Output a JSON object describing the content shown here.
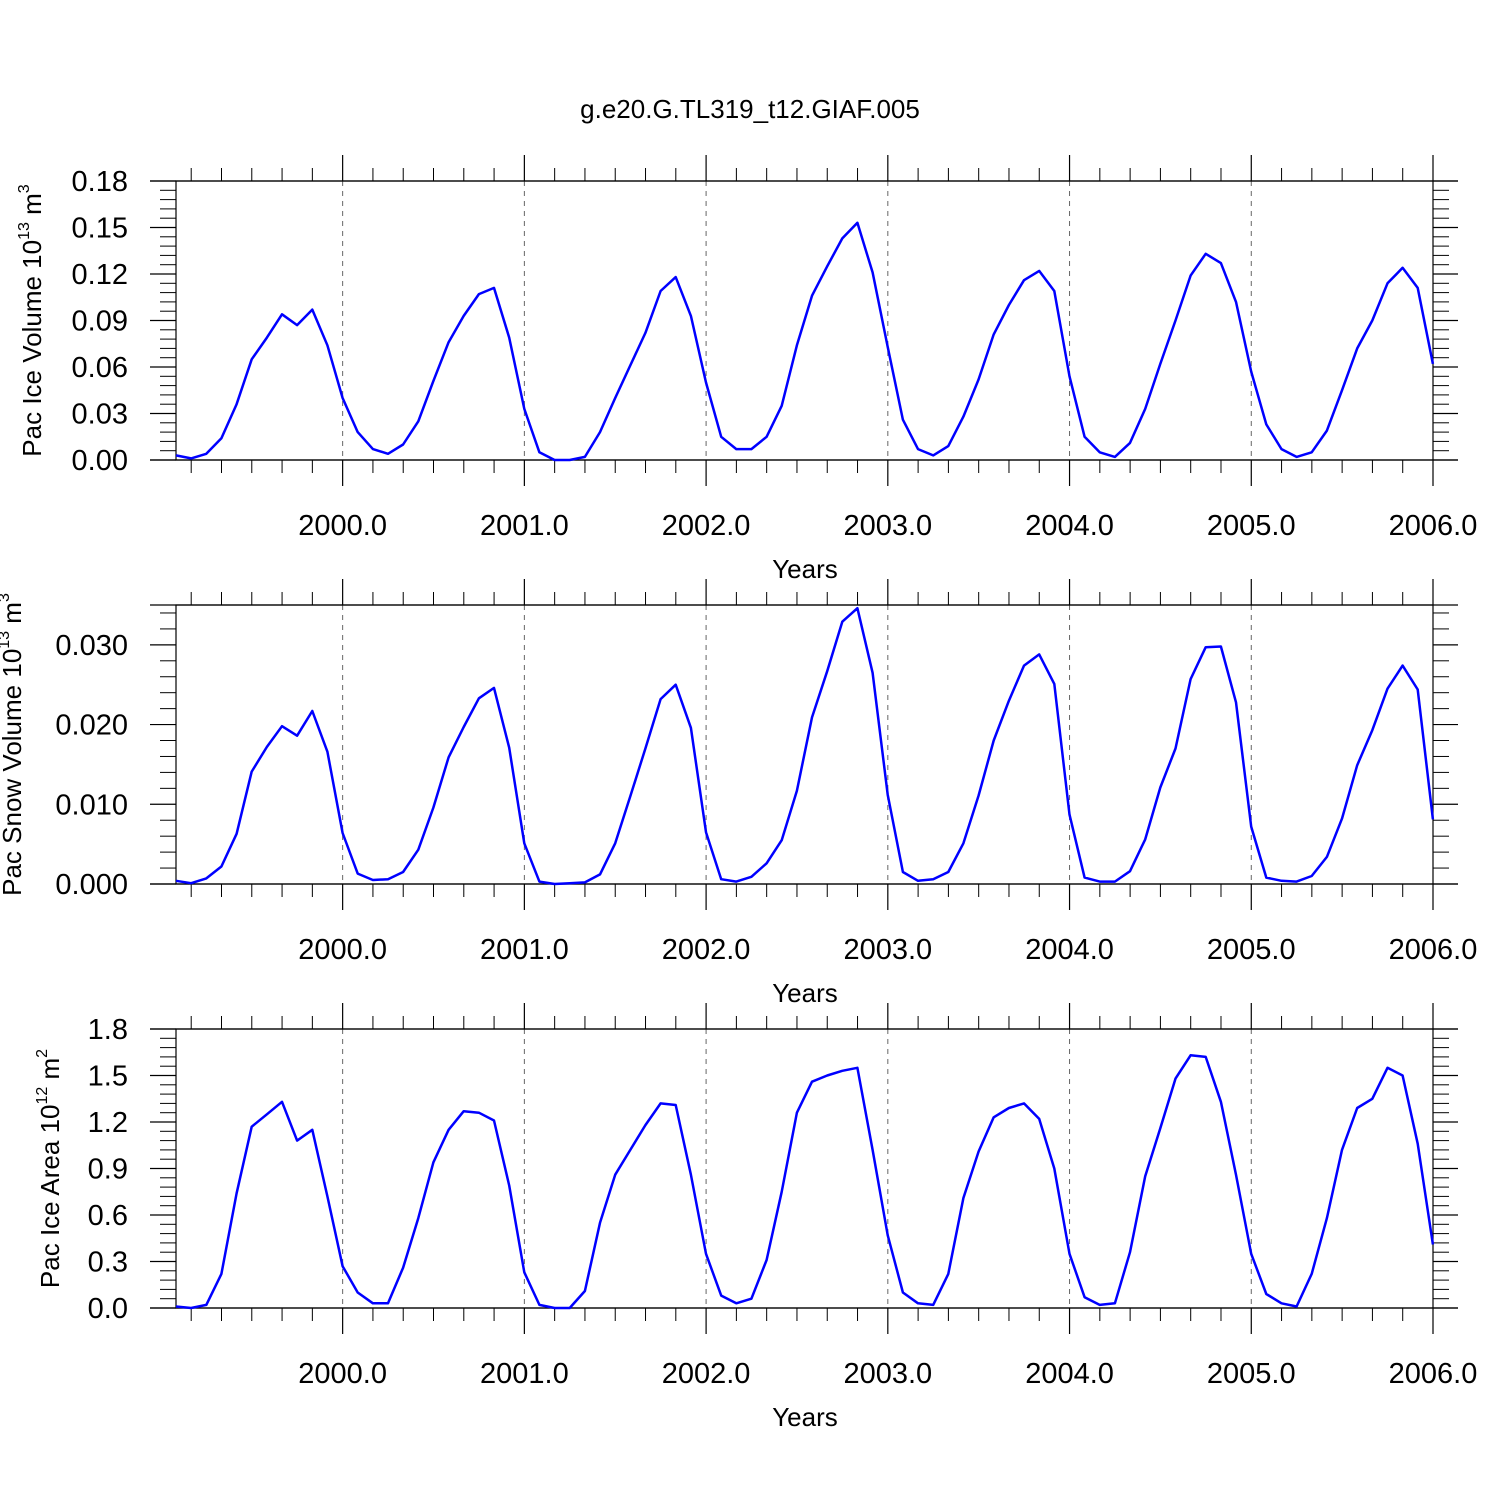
{
  "title": "g.e20.G.TL319_t12.GIAF.005",
  "line_color": "#0000ff",
  "chart_data": [
    {
      "type": "line",
      "xlabel": "Years",
      "ylabel": {
        "pre": "Pac Ice Volume 10",
        "exp": "13",
        "mid": " m",
        "exp2": "3"
      },
      "xlim": [
        1999.083,
        2006.0
      ],
      "ylim": [
        0.0,
        0.18
      ],
      "xticks": [
        2000.0,
        2001.0,
        2002.0,
        2003.0,
        2004.0,
        2005.0,
        2006.0
      ],
      "xtick_labels": [
        "2000.0",
        "2001.0",
        "2002.0",
        "2003.0",
        "2004.0",
        "2005.0",
        "2006.0"
      ],
      "yticks": [
        0.0,
        0.03,
        0.06,
        0.09,
        0.12,
        0.15,
        0.18
      ],
      "ytick_labels": [
        "0.00",
        "0.03",
        "0.06",
        "0.09",
        "0.12",
        "0.15",
        "0.18"
      ],
      "grid": "vertical dashed at years",
      "series": [
        {
          "x_start": 1999.083,
          "x_step": 0.08333,
          "values": [
            0.003,
            0.001,
            0.004,
            0.014,
            0.036,
            0.065,
            0.079,
            0.094,
            0.087,
            0.097,
            0.074,
            0.04,
            0.018,
            0.007,
            0.004,
            0.01,
            0.025,
            0.051,
            0.076,
            0.093,
            0.107,
            0.111,
            0.079,
            0.033,
            0.005,
            0.0,
            0.0,
            0.002,
            0.018,
            0.04,
            0.061,
            0.082,
            0.109,
            0.118,
            0.093,
            0.05,
            0.015,
            0.007,
            0.007,
            0.015,
            0.035,
            0.074,
            0.106,
            0.125,
            0.143,
            0.153,
            0.121,
            0.073,
            0.026,
            0.007,
            0.003,
            0.009,
            0.028,
            0.052,
            0.081,
            0.1,
            0.116,
            0.122,
            0.109,
            0.054,
            0.015,
            0.005,
            0.002,
            0.011,
            0.033,
            0.062,
            0.09,
            0.119,
            0.133,
            0.127,
            0.102,
            0.057,
            0.023,
            0.007,
            0.002,
            0.005,
            0.019,
            0.045,
            0.072,
            0.09,
            0.114,
            0.124,
            0.111,
            0.062
          ]
        }
      ]
    },
    {
      "type": "line",
      "xlabel": "Years",
      "ylabel": {
        "pre": "Pac Snow Volume 10",
        "exp": "13",
        "mid": " m",
        "exp2": "3"
      },
      "xlim": [
        1999.083,
        2006.0
      ],
      "ylim": [
        0.0,
        0.035
      ],
      "xticks": [
        2000.0,
        2001.0,
        2002.0,
        2003.0,
        2004.0,
        2005.0,
        2006.0
      ],
      "xtick_labels": [
        "2000.0",
        "2001.0",
        "2002.0",
        "2003.0",
        "2004.0",
        "2005.0",
        "2006.0"
      ],
      "yticks": [
        0.0,
        0.01,
        0.02,
        0.03
      ],
      "ytick_labels": [
        "0.000",
        "0.010",
        "0.020",
        "0.030"
      ],
      "grid": "vertical dashed at years",
      "series": [
        {
          "x_start": 1999.083,
          "x_step": 0.08333,
          "values": [
            0.0004,
            0.0001,
            0.0007,
            0.0022,
            0.0063,
            0.0141,
            0.0172,
            0.0198,
            0.0186,
            0.0217,
            0.0166,
            0.0064,
            0.0013,
            0.0005,
            0.0006,
            0.0015,
            0.0043,
            0.0096,
            0.0159,
            0.0197,
            0.0233,
            0.0246,
            0.0171,
            0.0051,
            0.0003,
            0.0,
            0.0001,
            0.0002,
            0.0012,
            0.0051,
            0.011,
            0.017,
            0.0232,
            0.025,
            0.0196,
            0.0065,
            0.0006,
            0.0003,
            0.0009,
            0.0026,
            0.0055,
            0.0117,
            0.0209,
            0.0267,
            0.0329,
            0.0346,
            0.0265,
            0.0112,
            0.0015,
            0.0004,
            0.0006,
            0.0015,
            0.0051,
            0.0111,
            0.018,
            0.023,
            0.0274,
            0.0288,
            0.0251,
            0.0087,
            0.0008,
            0.0003,
            0.0003,
            0.0016,
            0.0056,
            0.0121,
            0.017,
            0.0257,
            0.0297,
            0.0298,
            0.0228,
            0.0072,
            0.0008,
            0.0004,
            0.0003,
            0.001,
            0.0034,
            0.0082,
            0.0149,
            0.0193,
            0.0245,
            0.0274,
            0.0244,
            0.0081
          ]
        }
      ]
    },
    {
      "type": "line",
      "xlabel": "Years",
      "ylabel": {
        "pre": "Pac Ice Area 10",
        "exp": "12",
        "mid": " m",
        "exp2": "2"
      },
      "xlim": [
        1999.083,
        2006.0
      ],
      "ylim": [
        0.0,
        1.8
      ],
      "xticks": [
        2000.0,
        2001.0,
        2002.0,
        2003.0,
        2004.0,
        2005.0,
        2006.0
      ],
      "xtick_labels": [
        "2000.0",
        "2001.0",
        "2002.0",
        "2003.0",
        "2004.0",
        "2005.0",
        "2006.0"
      ],
      "yticks": [
        0.0,
        0.3,
        0.6,
        0.9,
        1.2,
        1.5,
        1.8
      ],
      "ytick_labels": [
        "0.0",
        "0.3",
        "0.6",
        "0.9",
        "1.2",
        "1.5",
        "1.8"
      ],
      "grid": "vertical dashed at years",
      "series": [
        {
          "x_start": 1999.083,
          "x_step": 0.08333,
          "values": [
            0.01,
            0.0,
            0.02,
            0.22,
            0.74,
            1.17,
            1.25,
            1.33,
            1.08,
            1.15,
            0.72,
            0.27,
            0.1,
            0.03,
            0.03,
            0.26,
            0.58,
            0.94,
            1.15,
            1.27,
            1.26,
            1.21,
            0.79,
            0.23,
            0.02,
            0.0,
            0.0,
            0.11,
            0.55,
            0.86,
            1.02,
            1.18,
            1.32,
            1.31,
            0.86,
            0.35,
            0.08,
            0.03,
            0.06,
            0.31,
            0.75,
            1.26,
            1.46,
            1.5,
            1.53,
            1.55,
            1.02,
            0.47,
            0.1,
            0.03,
            0.02,
            0.22,
            0.71,
            1.01,
            1.23,
            1.29,
            1.32,
            1.22,
            0.9,
            0.35,
            0.07,
            0.02,
            0.03,
            0.36,
            0.85,
            1.16,
            1.48,
            1.63,
            1.62,
            1.33,
            0.86,
            0.35,
            0.09,
            0.03,
            0.01,
            0.22,
            0.58,
            1.02,
            1.29,
            1.35,
            1.55,
            1.5,
            1.06,
            0.41
          ]
        }
      ]
    }
  ]
}
